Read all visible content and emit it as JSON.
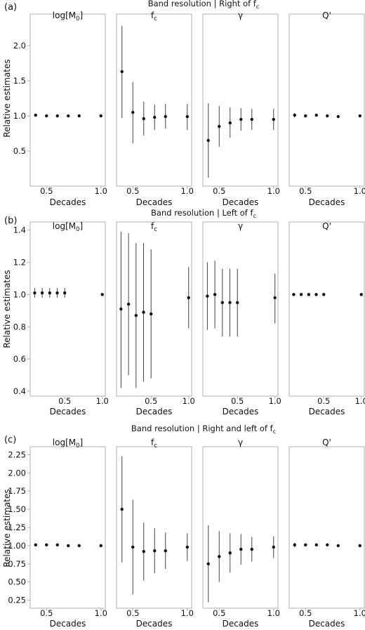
{
  "chart_data": [
    {
      "type": "scatter",
      "panel_label": "(a)",
      "title": "Band resolution | Right of f c",
      "title_main": "Band resolution | Right of f",
      "title_sub": "c",
      "ylabel": "Relative estimates",
      "xlabel": "Decades",
      "ylim": [
        0,
        2.45
      ],
      "yticks": [
        "0.5",
        "1.0",
        "1.5",
        "2.0"
      ],
      "ytick_values": [
        0.5,
        1.0,
        1.5,
        2.0
      ],
      "xlim": [
        0.35,
        1.04
      ],
      "xticks": [
        "0.5",
        "1.0"
      ],
      "xtick_values": [
        0.5,
        1.0
      ],
      "subplots": [
        {
          "name": "log[M",
          "sub": "0",
          "close": "]",
          "points": [
            {
              "x": 0.4,
              "y": 1.01,
              "lo": 1.01,
              "hi": 1.01
            },
            {
              "x": 0.5,
              "y": 1.0,
              "lo": 1.0,
              "hi": 1.0
            },
            {
              "x": 0.6,
              "y": 1.0,
              "lo": 1.0,
              "hi": 1.0
            },
            {
              "x": 0.7,
              "y": 1.0,
              "lo": 1.0,
              "hi": 1.0
            },
            {
              "x": 0.8,
              "y": 1.0,
              "lo": 1.0,
              "hi": 1.0
            },
            {
              "x": 1.0,
              "y": 1.0,
              "lo": 1.0,
              "hi": 1.0
            }
          ]
        },
        {
          "name": "f",
          "sub": "c",
          "close": "",
          "points": [
            {
              "x": 0.4,
              "y": 1.63,
              "lo": 0.97,
              "hi": 2.28
            },
            {
              "x": 0.5,
              "y": 1.05,
              "lo": 0.61,
              "hi": 1.48
            },
            {
              "x": 0.6,
              "y": 0.96,
              "lo": 0.72,
              "hi": 1.2
            },
            {
              "x": 0.7,
              "y": 0.98,
              "lo": 0.8,
              "hi": 1.16
            },
            {
              "x": 0.8,
              "y": 0.99,
              "lo": 0.82,
              "hi": 1.17
            },
            {
              "x": 1.0,
              "y": 0.99,
              "lo": 0.8,
              "hi": 1.17
            }
          ]
        },
        {
          "name": "γ",
          "sub": "",
          "close": "",
          "points": [
            {
              "x": 0.4,
              "y": 0.65,
              "lo": 0.12,
              "hi": 1.18
            },
            {
              "x": 0.5,
              "y": 0.85,
              "lo": 0.56,
              "hi": 1.14
            },
            {
              "x": 0.6,
              "y": 0.9,
              "lo": 0.69,
              "hi": 1.12
            },
            {
              "x": 0.7,
              "y": 0.95,
              "lo": 0.79,
              "hi": 1.11
            },
            {
              "x": 0.8,
              "y": 0.95,
              "lo": 0.8,
              "hi": 1.1
            },
            {
              "x": 1.0,
              "y": 0.95,
              "lo": 0.8,
              "hi": 1.1
            }
          ]
        },
        {
          "name": "Q'",
          "sub": "",
          "close": "",
          "points": [
            {
              "x": 0.4,
              "y": 1.01,
              "lo": 0.98,
              "hi": 1.04
            },
            {
              "x": 0.5,
              "y": 1.0,
              "lo": 0.98,
              "hi": 1.02
            },
            {
              "x": 0.6,
              "y": 1.01,
              "lo": 0.99,
              "hi": 1.03
            },
            {
              "x": 0.7,
              "y": 1.0,
              "lo": 1.0,
              "hi": 1.0
            },
            {
              "x": 0.8,
              "y": 0.99,
              "lo": 0.99,
              "hi": 0.99
            },
            {
              "x": 1.0,
              "y": 1.0,
              "lo": 1.0,
              "hi": 1.0
            }
          ]
        }
      ]
    },
    {
      "type": "scatter",
      "panel_label": "(b)",
      "title": "Band resolution | Left of f c",
      "title_main": "Band resolution | Left of f",
      "title_sub": "c",
      "ylabel": "Relative estimates",
      "xlabel": "Decades",
      "ylim": [
        0.37,
        1.45
      ],
      "yticks": [
        "0.4",
        "0.6",
        "0.8",
        "1.0",
        "1.2",
        "1.4"
      ],
      "ytick_values": [
        0.4,
        0.6,
        0.8,
        1.0,
        1.2,
        1.4
      ],
      "xlim": [
        0.04,
        1.04
      ],
      "xticks": [
        "0.5",
        "1.0"
      ],
      "xtick_values": [
        0.5,
        1.0
      ],
      "subplots": [
        {
          "name": "log[M",
          "sub": "0",
          "close": "]",
          "points": [
            {
              "x": 0.1,
              "y": 1.01,
              "lo": 0.98,
              "hi": 1.04
            },
            {
              "x": 0.2,
              "y": 1.01,
              "lo": 0.98,
              "hi": 1.04
            },
            {
              "x": 0.3,
              "y": 1.01,
              "lo": 0.98,
              "hi": 1.04
            },
            {
              "x": 0.4,
              "y": 1.01,
              "lo": 0.98,
              "hi": 1.04
            },
            {
              "x": 0.5,
              "y": 1.01,
              "lo": 0.98,
              "hi": 1.04
            },
            {
              "x": 1.0,
              "y": 1.0,
              "lo": 1.0,
              "hi": 1.0
            }
          ]
        },
        {
          "name": "f",
          "sub": "c",
          "close": "",
          "points": [
            {
              "x": 0.1,
              "y": 0.91,
              "lo": 0.42,
              "hi": 1.39
            },
            {
              "x": 0.2,
              "y": 0.94,
              "lo": 0.5,
              "hi": 1.38
            },
            {
              "x": 0.3,
              "y": 0.87,
              "lo": 0.42,
              "hi": 1.32
            },
            {
              "x": 0.4,
              "y": 0.89,
              "lo": 0.46,
              "hi": 1.32
            },
            {
              "x": 0.5,
              "y": 0.88,
              "lo": 0.48,
              "hi": 1.28
            },
            {
              "x": 1.0,
              "y": 0.98,
              "lo": 0.79,
              "hi": 1.17
            }
          ]
        },
        {
          "name": "γ",
          "sub": "",
          "close": "",
          "points": [
            {
              "x": 0.1,
              "y": 0.99,
              "lo": 0.78,
              "hi": 1.2
            },
            {
              "x": 0.2,
              "y": 1.0,
              "lo": 0.79,
              "hi": 1.21
            },
            {
              "x": 0.3,
              "y": 0.95,
              "lo": 0.74,
              "hi": 1.16
            },
            {
              "x": 0.4,
              "y": 0.95,
              "lo": 0.74,
              "hi": 1.16
            },
            {
              "x": 0.5,
              "y": 0.95,
              "lo": 0.74,
              "hi": 1.16
            },
            {
              "x": 1.0,
              "y": 0.98,
              "lo": 0.82,
              "hi": 1.13
            }
          ]
        },
        {
          "name": "Q'",
          "sub": "",
          "close": "",
          "points": [
            {
              "x": 0.1,
              "y": 1.0,
              "lo": 0.99,
              "hi": 1.01
            },
            {
              "x": 0.2,
              "y": 1.0,
              "lo": 1.0,
              "hi": 1.0
            },
            {
              "x": 0.3,
              "y": 1.0,
              "lo": 0.99,
              "hi": 1.01
            },
            {
              "x": 0.4,
              "y": 1.0,
              "lo": 0.99,
              "hi": 1.01
            },
            {
              "x": 0.5,
              "y": 1.0,
              "lo": 0.99,
              "hi": 1.01
            },
            {
              "x": 1.0,
              "y": 1.0,
              "lo": 1.0,
              "hi": 1.0
            }
          ]
        }
      ]
    },
    {
      "type": "scatter",
      "panel_label": "(c)",
      "title": "Band resolution | Right and left of f c",
      "title_main": "Band resolution | Right and left of f",
      "title_sub": "c",
      "ylabel": "Relative estimates",
      "xlabel": "Decades",
      "ylim": [
        0.14,
        2.36
      ],
      "yticks": [
        "0.25",
        "0.50",
        "0.75",
        "1.00",
        "1.25",
        "1.50",
        "1.75",
        "2.00",
        "2.25"
      ],
      "ytick_values": [
        0.25,
        0.5,
        0.75,
        1.0,
        1.25,
        1.5,
        1.75,
        2.0,
        2.25
      ],
      "xlim": [
        0.35,
        1.04
      ],
      "xticks": [
        "0.5",
        "1.0"
      ],
      "xtick_values": [
        0.5,
        1.0
      ],
      "subplots": [
        {
          "name": "log[M",
          "sub": "0",
          "close": "]",
          "points": [
            {
              "x": 0.4,
              "y": 1.01,
              "lo": 1.01,
              "hi": 1.01
            },
            {
              "x": 0.5,
              "y": 1.01,
              "lo": 1.01,
              "hi": 1.01
            },
            {
              "x": 0.6,
              "y": 1.01,
              "lo": 1.01,
              "hi": 1.01
            },
            {
              "x": 0.7,
              "y": 1.0,
              "lo": 1.0,
              "hi": 1.0
            },
            {
              "x": 0.8,
              "y": 1.0,
              "lo": 1.0,
              "hi": 1.0
            },
            {
              "x": 1.0,
              "y": 1.0,
              "lo": 1.0,
              "hi": 1.0
            }
          ]
        },
        {
          "name": "f",
          "sub": "c",
          "close": "",
          "points": [
            {
              "x": 0.4,
              "y": 1.5,
              "lo": 0.77,
              "hi": 2.23
            },
            {
              "x": 0.5,
              "y": 0.98,
              "lo": 0.33,
              "hi": 1.63
            },
            {
              "x": 0.6,
              "y": 0.92,
              "lo": 0.52,
              "hi": 1.32
            },
            {
              "x": 0.7,
              "y": 0.93,
              "lo": 0.62,
              "hi": 1.24
            },
            {
              "x": 0.8,
              "y": 0.93,
              "lo": 0.68,
              "hi": 1.18
            },
            {
              "x": 1.0,
              "y": 0.98,
              "lo": 0.79,
              "hi": 1.17
            }
          ]
        },
        {
          "name": "γ",
          "sub": "",
          "close": "",
          "points": [
            {
              "x": 0.4,
              "y": 0.75,
              "lo": 0.22,
              "hi": 1.28
            },
            {
              "x": 0.5,
              "y": 0.85,
              "lo": 0.5,
              "hi": 1.2
            },
            {
              "x": 0.6,
              "y": 0.9,
              "lo": 0.63,
              "hi": 1.17
            },
            {
              "x": 0.7,
              "y": 0.95,
              "lo": 0.74,
              "hi": 1.16
            },
            {
              "x": 0.8,
              "y": 0.95,
              "lo": 0.78,
              "hi": 1.12
            },
            {
              "x": 1.0,
              "y": 0.98,
              "lo": 0.83,
              "hi": 1.13
            }
          ]
        },
        {
          "name": "Q'",
          "sub": "",
          "close": "",
          "points": [
            {
              "x": 0.4,
              "y": 1.01,
              "lo": 0.98,
              "hi": 1.04
            },
            {
              "x": 0.5,
              "y": 1.01,
              "lo": 0.99,
              "hi": 1.03
            },
            {
              "x": 0.6,
              "y": 1.01,
              "lo": 1.0,
              "hi": 1.02
            },
            {
              "x": 0.7,
              "y": 1.01,
              "lo": 1.0,
              "hi": 1.02
            },
            {
              "x": 0.8,
              "y": 1.0,
              "lo": 1.0,
              "hi": 1.0
            },
            {
              "x": 1.0,
              "y": 1.0,
              "lo": 1.0,
              "hi": 1.0
            }
          ]
        }
      ]
    }
  ],
  "style": {
    "spine_color": "#b0b0b0",
    "marker_color": "#111111",
    "errorbar_color": "#444444"
  }
}
